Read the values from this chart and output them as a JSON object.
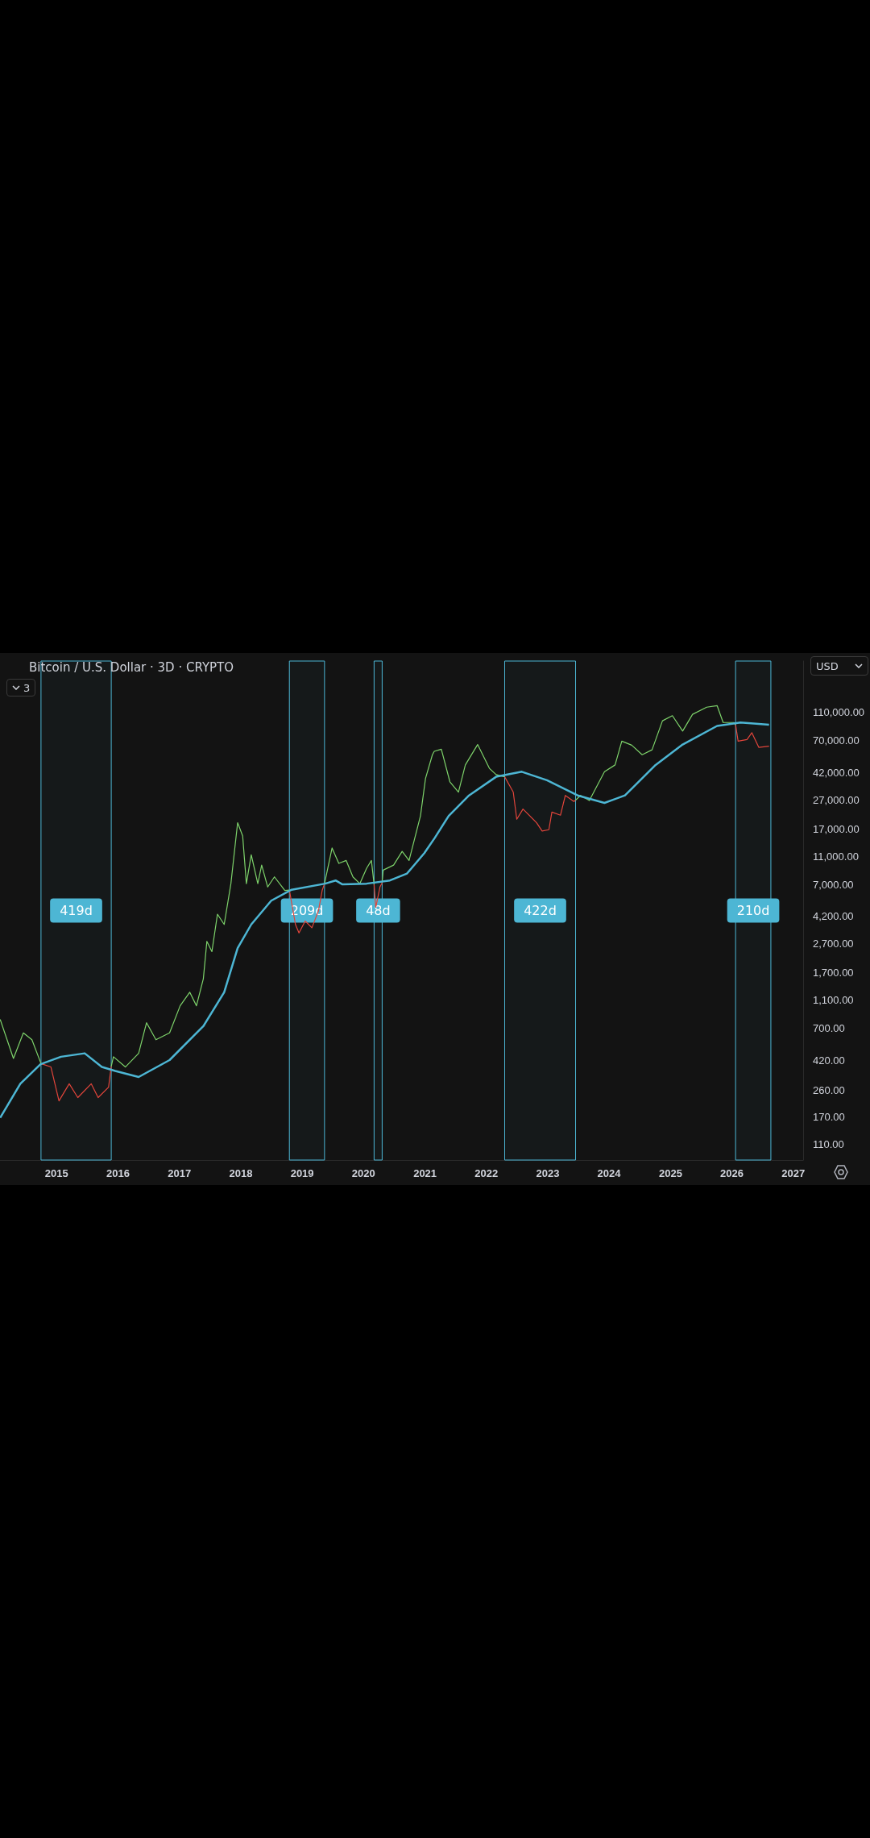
{
  "chart_data": {
    "type": "line",
    "title": "Bitcoin / U.S. Dollar · 3D · CRYPTO",
    "xlim": [
      "2014-01-29",
      "2027-03-01"
    ],
    "xticks": [
      {
        "value": "2015-01-01",
        "label": "2015"
      },
      {
        "value": "2016-01-01",
        "label": "2016"
      },
      {
        "value": "2017-01-01",
        "label": "2017"
      },
      {
        "value": "2018-01-01",
        "label": "2018"
      },
      {
        "value": "2019-01-01",
        "label": "2019"
      },
      {
        "value": "2020-01-01",
        "label": "2020"
      },
      {
        "value": "2021-01-01",
        "label": "2021"
      },
      {
        "value": "2022-01-01",
        "label": "2022"
      },
      {
        "value": "2023-01-01",
        "label": "2023"
      },
      {
        "value": "2024-01-01",
        "label": "2024"
      },
      {
        "value": "2025-01-01",
        "label": "2025"
      },
      {
        "value": "2026-01-01",
        "label": "2026"
      },
      {
        "value": "2027-01-01",
        "label": "2027"
      }
    ],
    "log": "y",
    "ylim": [
      85,
      250000
    ],
    "yticks": [
      {
        "value": 110,
        "label": "110.00"
      },
      {
        "value": 170,
        "label": "170.00"
      },
      {
        "value": 260,
        "label": "260.00"
      },
      {
        "value": 420,
        "label": "420.00"
      },
      {
        "value": 700,
        "label": "700.00"
      },
      {
        "value": 1100,
        "label": "1,100.00"
      },
      {
        "value": 1700,
        "label": "1,700.00"
      },
      {
        "value": 2700,
        "label": "2,700.00"
      },
      {
        "value": 4200,
        "label": "4,200.00"
      },
      {
        "value": 7000,
        "label": "7,000.00"
      },
      {
        "value": 11000,
        "label": "11,000.00"
      },
      {
        "value": 17000,
        "label": "17,000.00"
      },
      {
        "value": 27000,
        "label": "27,000.00"
      },
      {
        "value": 42000,
        "label": "42,000.00"
      },
      {
        "value": 70000,
        "label": "70,000.00"
      },
      {
        "value": 110000,
        "label": "110,000.00"
      }
    ],
    "series": [
      {
        "color": "#7ed36b",
        "x": [
          "2014-01-30",
          "2014-04-19",
          "2014-06-17",
          "2014-08-07",
          "2014-09-30"
        ],
        "values": [
          807,
          432,
          650,
          583,
          398
        ]
      },
      {
        "color": "#e2453b",
        "x": [
          "2014-09-30",
          "2014-11-28",
          "2015-01-15",
          "2015-03-17",
          "2015-05-07",
          "2015-07-26",
          "2015-09-05",
          "2015-11-06",
          "2015-11-22"
        ],
        "values": [
          398,
          377,
          219,
          288,
          231,
          288,
          231,
          273,
          380
        ]
      },
      {
        "color": "#7ed36b",
        "x": [
          "2015-11-22",
          "2015-12-05",
          "2016-02-14",
          "2016-05-03",
          "2016-06-19",
          "2016-08-14",
          "2016-11-03",
          "2017-01-05",
          "2017-03-03",
          "2017-04-12",
          "2017-05-23",
          "2017-06-13",
          "2017-07-13",
          "2017-08-15",
          "2017-09-24",
          "2017-11-03",
          "2017-12-13",
          "2018-01-12",
          "2018-02-03",
          "2018-03-04",
          "2018-04-12",
          "2018-05-05",
          "2018-06-10",
          "2018-07-20",
          "2018-09-20",
          "2018-10-17"
        ],
        "values": [
          380,
          444,
          377,
          469,
          765,
          583,
          650,
          1004,
          1247,
          1004,
          1548,
          2815,
          2390,
          4350,
          3690,
          7090,
          18800,
          15200,
          7090,
          11250,
          7090,
          9540,
          6720,
          7900,
          6360,
          6400
        ]
      },
      {
        "color": "#e2453b",
        "x": [
          "2018-10-17",
          "2018-11-22",
          "2018-12-13",
          "2019-01-19",
          "2019-02-28",
          "2019-04-08",
          "2019-04-30",
          "2019-05-14"
        ],
        "values": [
          6400,
          3690,
          3220,
          3900,
          3500,
          4590,
          6360,
          7090
        ]
      },
      {
        "color": "#7ed36b",
        "x": [
          "2019-05-14",
          "2019-06-28",
          "2019-08-07",
          "2019-09-20",
          "2019-10-30",
          "2019-12-10",
          "2020-01-19",
          "2020-02-17",
          "2020-03-04"
        ],
        "values": [
          7090,
          12540,
          9800,
          10270,
          7900,
          7090,
          9040,
          10270,
          7000
        ]
      },
      {
        "color": "#e2453b",
        "x": [
          "2020-03-04",
          "2020-03-14",
          "2020-04-08",
          "2020-04-21"
        ],
        "values": [
          7000,
          4850,
          6720,
          7200
        ]
      },
      {
        "color": "#7ed36b",
        "x": [
          "2020-04-21",
          "2020-04-27",
          "2020-06-28",
          "2020-08-18",
          "2020-09-28",
          "2020-12-05",
          "2021-01-04",
          "2021-02-14",
          "2021-02-25",
          "2021-04-08",
          "2021-05-29",
          "2021-07-19",
          "2021-08-29",
          "2021-11-10",
          "2022-01-19",
          "2022-02-28",
          "2022-04-20"
        ],
        "values": [
          7200,
          8800,
          9540,
          11870,
          10270,
          20980,
          38170,
          55800,
          58900,
          61000,
          36200,
          30700,
          47400,
          65700,
          44900,
          40600,
          39200
        ]
      },
      {
        "color": "#e2453b",
        "x": [
          "2022-04-20",
          "2022-06-10",
          "2022-07-01",
          "2022-08-07",
          "2022-10-27",
          "2022-11-29",
          "2023-01-08",
          "2023-01-26",
          "2023-03-18",
          "2023-04-16",
          "2023-06-06",
          "2023-06-16"
        ],
        "values": [
          39200,
          30700,
          19880,
          23400,
          18800,
          16450,
          16800,
          22300,
          21200,
          29100,
          26400,
          27000
        ]
      },
      {
        "color": "#7ed36b",
        "x": [
          "2023-06-16",
          "2023-07-16",
          "2023-09-06",
          "2023-12-05",
          "2024-02-06",
          "2024-03-17",
          "2024-05-15",
          "2024-07-16",
          "2024-09-13",
          "2024-11-14",
          "2025-01-12",
          "2025-03-14",
          "2025-05-12",
          "2025-08-04",
          "2025-10-05",
          "2025-11-10",
          "2026-01-12",
          "2026-01-23"
        ],
        "values": [
          27000,
          29100,
          26800,
          42500,
          47400,
          69400,
          65000,
          55800,
          60400,
          96100,
          104300,
          81500,
          106500,
          119400,
          122500,
          93500,
          93500,
          90000
        ]
      },
      {
        "color": "#e2453b",
        "x": [
          "2026-01-23",
          "2026-02-07",
          "2026-04-01",
          "2026-04-30",
          "2026-06-10",
          "2026-08-10"
        ],
        "values": [
          90000,
          69400,
          71200,
          79400,
          62800,
          64000
        ]
      },
      {
        "color": "#4db6d4",
        "x": [
          "2014-01-30",
          "2014-05-30",
          "2014-09-27",
          "2015-01-27",
          "2015-06-17",
          "2015-09-27",
          "2015-12-16",
          "2016-05-03",
          "2016-11-03",
          "2017-05-23",
          "2017-09-24",
          "2017-12-13",
          "2018-03-04",
          "2018-07-01",
          "2018-10-30",
          "2019-05-18",
          "2019-07-19",
          "2019-08-29",
          "2020-01-19",
          "2020-06-06",
          "2020-09-16",
          "2020-12-28",
          "2021-02-28",
          "2021-05-22",
          "2021-09-20",
          "2022-02-28",
          "2022-07-31",
          "2022-12-28",
          "2023-06-28",
          "2023-12-05",
          "2024-04-05",
          "2024-10-04",
          "2025-03-14",
          "2025-10-05",
          "2026-02-21",
          "2026-08-10"
        ],
        "values": [
          167,
          288,
          394,
          444,
          469,
          377,
          354,
          321,
          421,
          724,
          1247,
          2527,
          3690,
          5400,
          6430,
          7090,
          7460,
          7000,
          7090,
          7460,
          8340,
          11550,
          14750,
          20980,
          29100,
          39200,
          42500,
          37100,
          29100,
          25800,
          29100,
          47400,
          65700,
          88500,
          93500,
          90300
        ]
      }
    ],
    "bands": [
      {
        "axis": "x",
        "from": "2014-09-30",
        "to": "2015-11-22",
        "color": "#4db6d4",
        "label": "419d"
      },
      {
        "axis": "x",
        "from": "2018-10-17",
        "to": "2019-05-14",
        "color": "#4db6d4",
        "label": "209d"
      },
      {
        "axis": "x",
        "from": "2020-03-04",
        "to": "2020-04-21",
        "color": "#4db6d4",
        "label": "48d"
      },
      {
        "axis": "x",
        "from": "2022-04-20",
        "to": "2023-06-16",
        "color": "#4db6d4",
        "label": "422d"
      },
      {
        "axis": "x",
        "from": "2026-01-23",
        "to": "2026-08-21",
        "color": "#4db6d4",
        "label": "210d"
      }
    ],
    "annotations": [
      "USD",
      "3"
    ]
  }
}
